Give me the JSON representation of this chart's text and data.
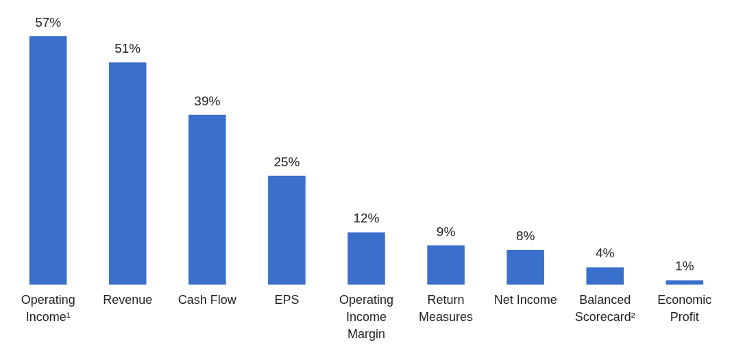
{
  "chart_data": {
    "type": "bar",
    "categories": [
      "Operating\nIncome¹",
      "Revenue",
      "Cash Flow",
      "EPS",
      "Operating\nIncome\nMargin",
      "Return\nMeasures",
      "Net Income",
      "Balanced\nScorecard²",
      "Economic\nProfit"
    ],
    "values": [
      57,
      51,
      39,
      25,
      12,
      9,
      8,
      4,
      1
    ],
    "value_labels": [
      "57%",
      "51%",
      "39%",
      "25%",
      "12%",
      "9%",
      "8%",
      "4%",
      "1%"
    ],
    "color": "#3a6fcc"
  }
}
